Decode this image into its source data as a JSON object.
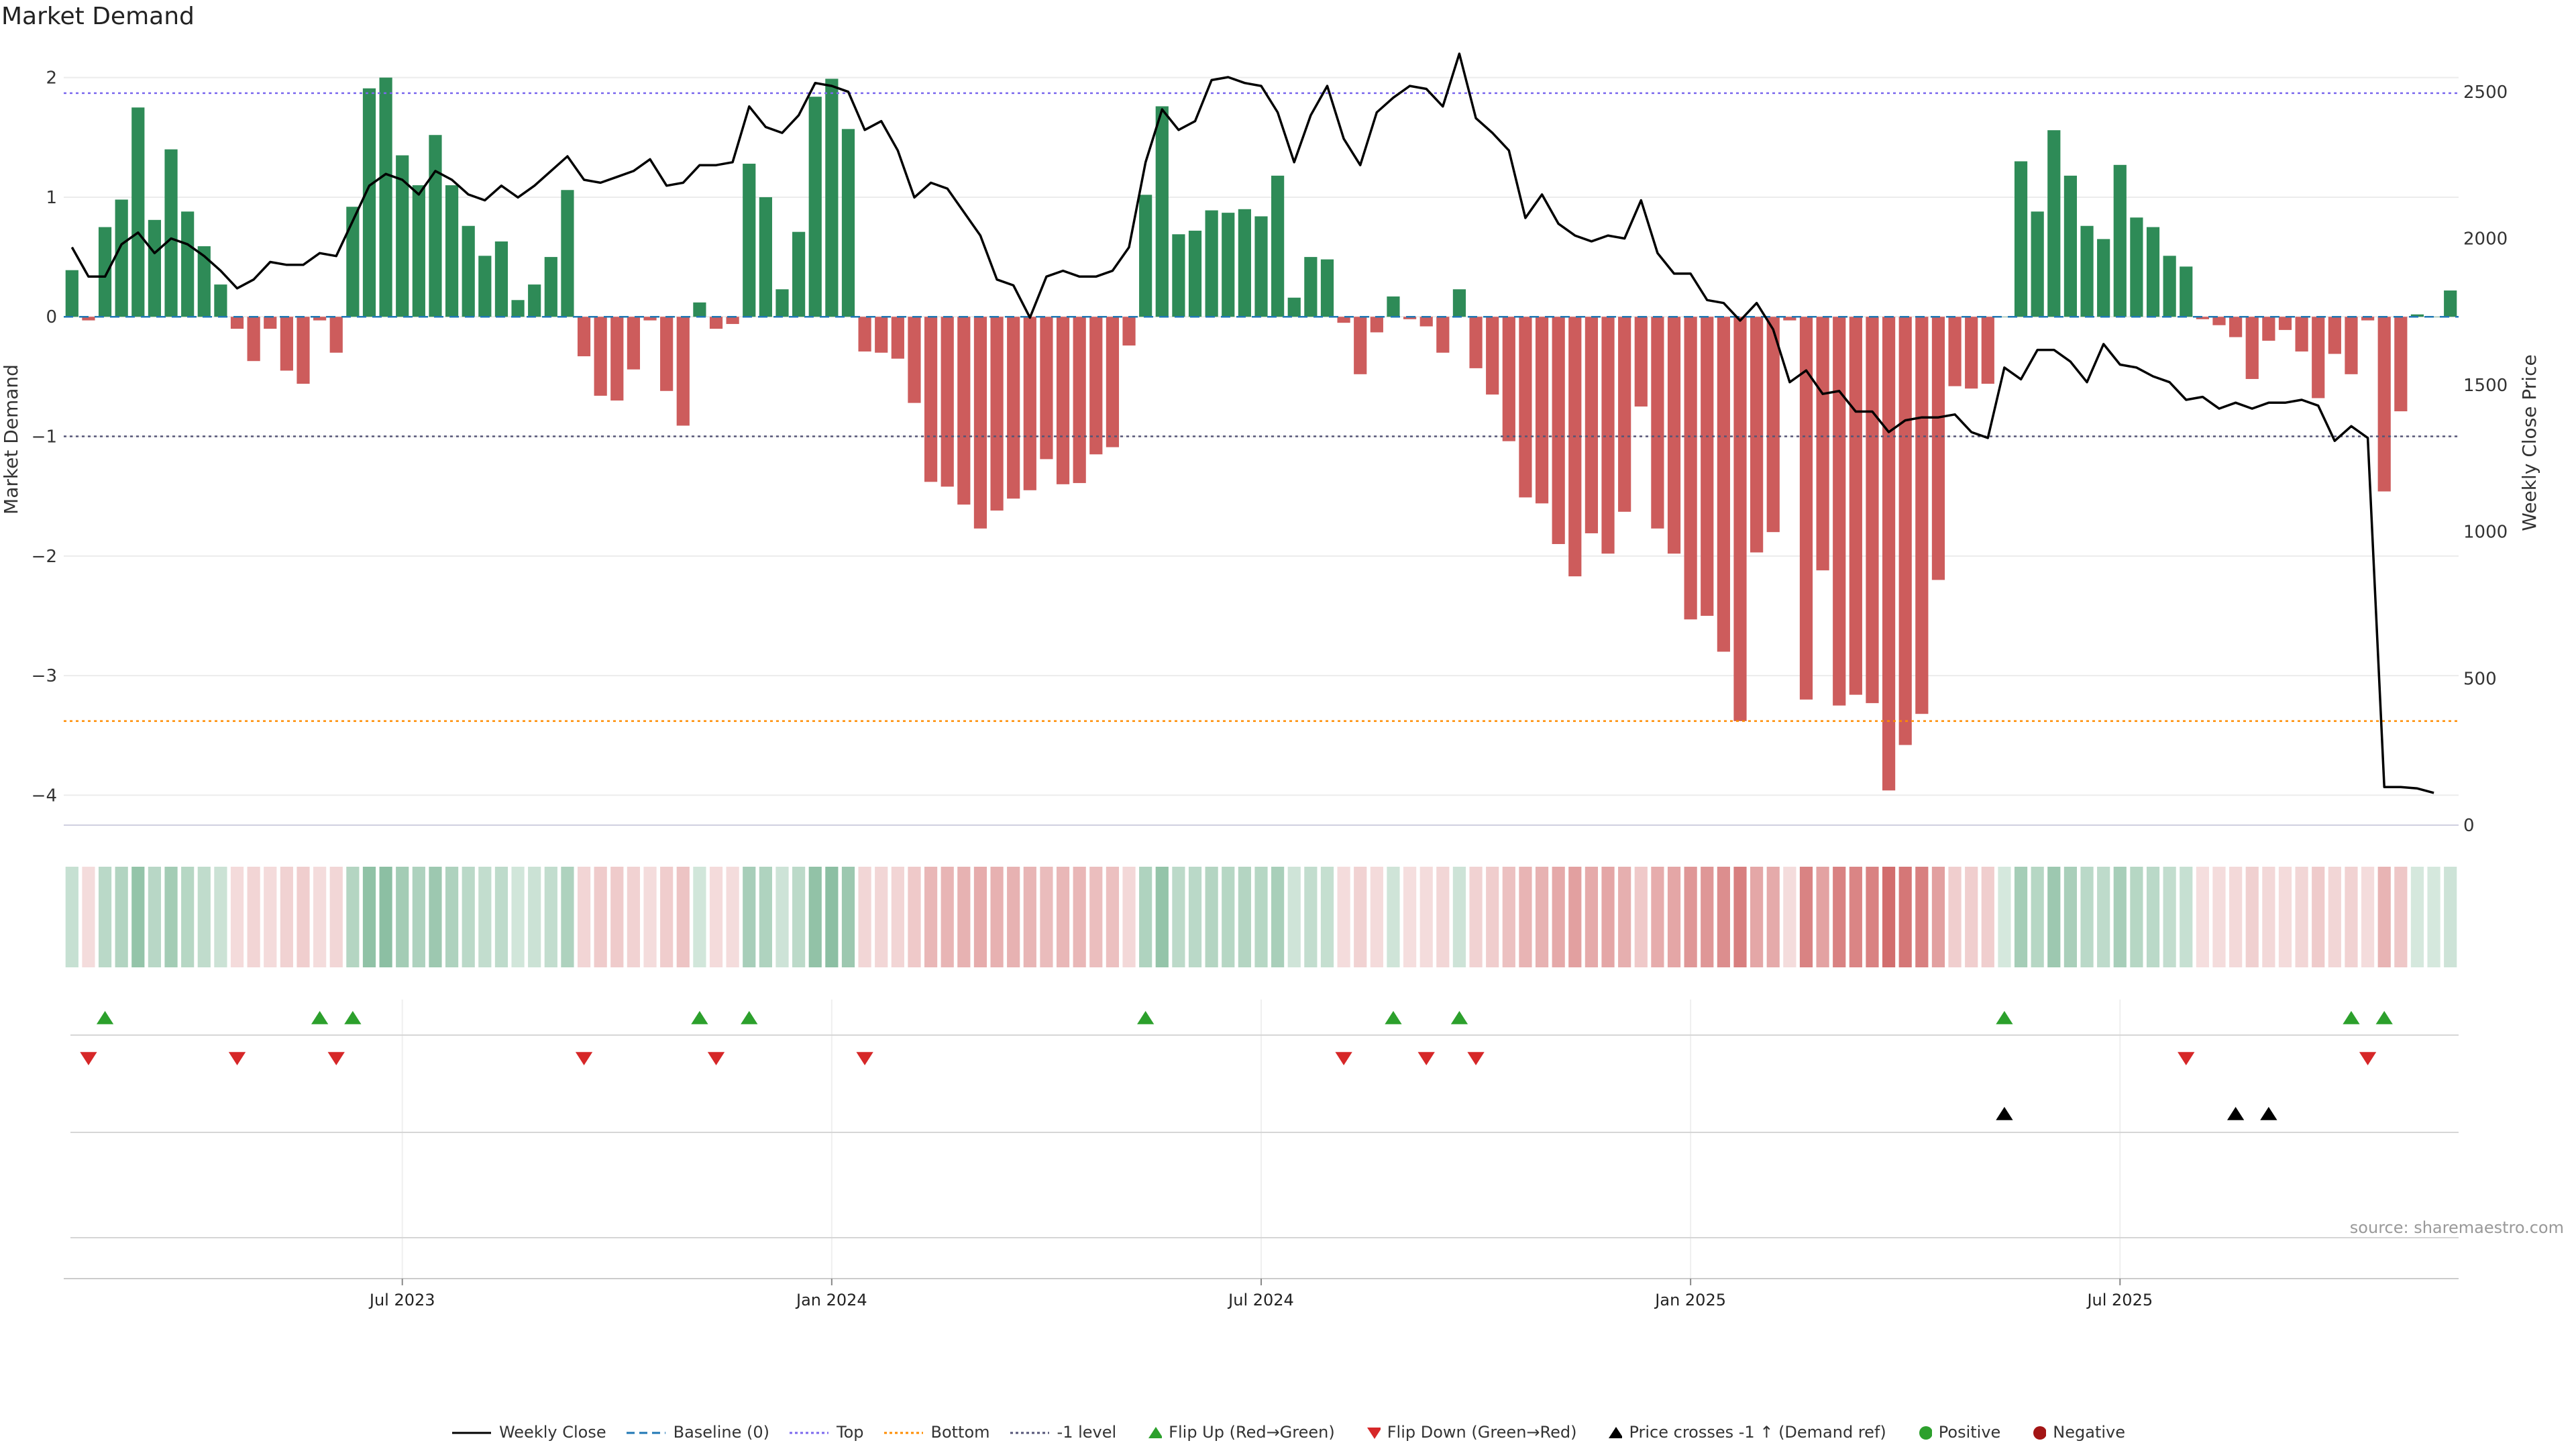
{
  "title": "Market Demand",
  "source": "source: sharemaestro.com",
  "colors": {
    "positive": "#2e8b57",
    "negative": "#cd5c5c",
    "close": "#000000",
    "baseline": "#1f77b4",
    "top": "#7b68ee",
    "bottom": "#ff8c00",
    "neg1": "#555577",
    "flip_up": "#2ca02c",
    "flip_down": "#d62728",
    "cross": "#000000",
    "pos_dot": "#2ca02c",
    "neg_dot": "#a31515"
  },
  "chart_data": {
    "type": "bar",
    "ylabel": "Market Demand",
    "y2label": "Weekly Close Price",
    "yticks": [
      "2",
      "1",
      "0",
      "−1",
      "−2",
      "−3",
      "−4"
    ],
    "y2ticks": [
      "2500",
      "2000",
      "1500",
      "1000",
      "500",
      "0"
    ],
    "xticks": [
      "Jul 2023",
      "Jan 2024",
      "Jul 2024",
      "Jan 2025",
      "Jul 2025"
    ],
    "ylim": [
      -4.25,
      2.2
    ],
    "y2lim": [
      0,
      2630
    ],
    "reference_levels": {
      "top": 1.87,
      "bottom": -3.38,
      "minus_one": -1.0
    },
    "demand": [
      0.39,
      -0.03,
      0.75,
      0.98,
      1.75,
      0.81,
      1.4,
      0.88,
      0.59,
      0.27,
      -0.1,
      -0.37,
      -0.1,
      -0.45,
      -0.56,
      -0.03,
      -0.3,
      0.92,
      1.91,
      2.0,
      1.35,
      1.1,
      1.52,
      1.1,
      0.76,
      0.51,
      0.63,
      0.14,
      0.27,
      0.5,
      1.06,
      -0.33,
      -0.66,
      -0.7,
      -0.44,
      -0.03,
      -0.62,
      -0.91,
      0.12,
      -0.1,
      -0.06,
      1.28,
      1.0,
      0.23,
      0.71,
      1.84,
      1.99,
      1.57,
      -0.29,
      -0.3,
      -0.35,
      -0.72,
      -1.38,
      -1.42,
      -1.57,
      -1.77,
      -1.62,
      -1.52,
      -1.45,
      -1.19,
      -1.4,
      -1.39,
      -1.15,
      -1.09,
      -0.24,
      1.02,
      1.76,
      0.69,
      0.72,
      0.89,
      0.87,
      0.9,
      0.84,
      1.18,
      0.16,
      0.5,
      0.48,
      -0.05,
      -0.48,
      -0.13,
      0.17,
      -0.02,
      -0.08,
      -0.3,
      0.23,
      -0.43,
      -0.65,
      -1.04,
      -1.51,
      -1.56,
      -1.9,
      -2.17,
      -1.81,
      -1.98,
      -1.63,
      -0.75,
      -1.77,
      -1.98,
      -2.53,
      -2.5,
      -2.8,
      -3.38,
      -1.97,
      -1.8,
      -0.03,
      -3.2,
      -2.12,
      -3.25,
      -3.16,
      -3.23,
      -3.96,
      -3.58,
      -3.32,
      -2.2,
      -0.58,
      -0.6,
      -0.56,
      0.0,
      1.3,
      0.88,
      1.56,
      1.18,
      0.76,
      0.65,
      1.27,
      0.83,
      0.75,
      0.51,
      0.42,
      -0.02,
      -0.07,
      -0.17,
      -0.52,
      -0.2,
      -0.11,
      -0.29,
      -0.68,
      -0.31,
      -0.48,
      -0.03,
      -1.46,
      -0.79,
      0.02,
      0.0,
      0.22
    ],
    "weekly_close": [
      1970,
      1870,
      1870,
      1980,
      2020,
      1950,
      2000,
      1980,
      1940,
      1890,
      1830,
      1860,
      1920,
      1910,
      1910,
      1950,
      1940,
      2060,
      2180,
      2220,
      2200,
      2150,
      2230,
      2200,
      2150,
      2130,
      2180,
      2140,
      2180,
      2230,
      2280,
      2200,
      2190,
      2210,
      2230,
      2270,
      2180,
      2190,
      2250,
      2250,
      2260,
      2450,
      2380,
      2360,
      2420,
      2530,
      2520,
      2500,
      2370,
      2400,
      2300,
      2140,
      2190,
      2170,
      2090,
      2010,
      1860,
      1840,
      1730,
      1870,
      1890,
      1870,
      1870,
      1890,
      1970,
      2260,
      2440,
      2370,
      2400,
      2540,
      2550,
      2530,
      2520,
      2430,
      2260,
      2420,
      2520,
      2340,
      2250,
      2430,
      2480,
      2520,
      2510,
      2450,
      2630,
      2410,
      2360,
      2300,
      2070,
      2150,
      2050,
      2010,
      1990,
      2010,
      2000,
      2130,
      1950,
      1880,
      1880,
      1790,
      1780,
      1720,
      1780,
      1690,
      1510,
      1550,
      1470,
      1480,
      1410,
      1410,
      1340,
      1380,
      1390,
      1390,
      1400,
      1340,
      1320,
      1560,
      1520,
      1620,
      1620,
      1580,
      1510,
      1640,
      1570,
      1560,
      1530,
      1510,
      1450,
      1460,
      1420,
      1440,
      1420,
      1440,
      1440,
      1450,
      1430,
      1310,
      1360,
      1320,
      130,
      130,
      125,
      110
    ],
    "flip_up_idx": [
      2,
      15,
      17,
      38,
      41,
      65,
      80,
      84,
      117,
      138,
      140
    ],
    "flip_down_idx": [
      1,
      10,
      16,
      31,
      39,
      48,
      77,
      82,
      85,
      128,
      139
    ],
    "price_cross_idx": [
      117,
      131,
      133
    ],
    "x_tick_idx": [
      20,
      46,
      72,
      98,
      124
    ]
  },
  "legend": [
    {
      "key": "close",
      "label": "Weekly Close",
      "icon": "line-solid"
    },
    {
      "key": "baseline",
      "label": "Baseline (0)",
      "icon": "line-dashed"
    },
    {
      "key": "top",
      "label": "Top",
      "icon": "line-dotted"
    },
    {
      "key": "bottom",
      "label": "Bottom",
      "icon": "line-dotted"
    },
    {
      "key": "neg1",
      "label": "-1 level",
      "icon": "line-dotted"
    },
    {
      "key": "flip_up",
      "label": "Flip Up (Red→Green)",
      "icon": "triangle-up"
    },
    {
      "key": "flip_down",
      "label": "Flip Down (Green→Red)",
      "icon": "triangle-down"
    },
    {
      "key": "cross",
      "label": "Price crosses -1 ↑ (Demand ref)",
      "icon": "triangle-up"
    },
    {
      "key": "pos_dot",
      "label": "Positive",
      "icon": "dot"
    },
    {
      "key": "neg_dot",
      "label": "Negative",
      "icon": "dot"
    }
  ]
}
